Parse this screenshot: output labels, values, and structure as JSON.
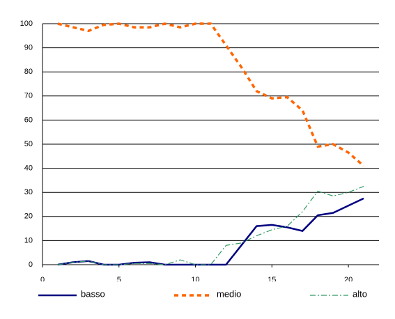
{
  "chart_data": {
    "type": "line",
    "x": [
      1,
      2,
      3,
      4,
      5,
      6,
      7,
      8,
      9,
      10,
      11,
      12,
      13,
      14,
      15,
      16,
      17,
      18,
      19,
      20,
      21
    ],
    "series": [
      {
        "name": "basso",
        "color": "#000080",
        "dash": "solid",
        "values": [
          0,
          1,
          1.5,
          0,
          0,
          0.8,
          1,
          0,
          0,
          0,
          0,
          0,
          8,
          16,
          16.5,
          15.5,
          14,
          20.5,
          21.5,
          24.5,
          27.5
        ]
      },
      {
        "name": "medio",
        "color": "#ff6600",
        "dash": "dashed",
        "values": [
          100,
          98.5,
          97,
          99.5,
          100,
          98.5,
          98.5,
          100,
          98.5,
          100,
          100,
          91,
          82,
          72,
          69,
          69.5,
          64,
          49,
          50,
          46.5,
          41
        ]
      },
      {
        "name": "alto",
        "color": "#339966",
        "dash": "dashdot",
        "values": [
          0,
          1,
          1.5,
          0,
          0,
          0.5,
          0.5,
          0,
          2,
          0,
          0,
          8,
          9,
          12,
          14.5,
          16,
          22,
          30.5,
          28.5,
          30,
          32.5
        ]
      }
    ],
    "xlim": [
      0,
      22
    ],
    "xticks": [
      0,
      5,
      10,
      15,
      20
    ],
    "ylim": [
      0,
      100
    ],
    "yticks": [
      0,
      10,
      20,
      30,
      40,
      50,
      60,
      70,
      80,
      90,
      100
    ],
    "grid": true,
    "legend": "bottom"
  }
}
